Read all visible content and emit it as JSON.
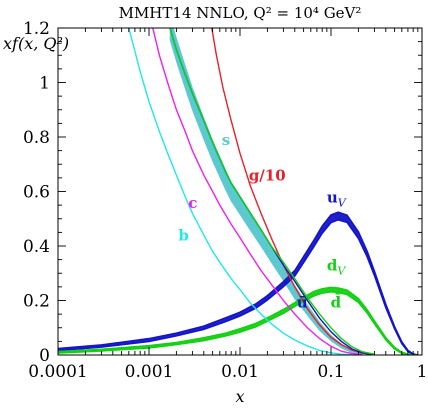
{
  "chart_data": {
    "type": "line",
    "title": "MMHT14 NNLO, Q² = 10⁴ GeV²",
    "xlabel": "x",
    "ylabel": "xf(x, Q²)",
    "xscale": "log",
    "xlim": [
      0.0001,
      1
    ],
    "ylim": [
      0,
      1.2
    ],
    "x_ticks": [
      0.0001,
      0.001,
      0.01,
      0.1,
      1
    ],
    "x_tick_labels": [
      "0.0001",
      "0.001",
      "0.01",
      "0.1",
      "1"
    ],
    "y_ticks": [
      0,
      0.2,
      0.4,
      0.6,
      0.8,
      1,
      1.2
    ],
    "y_tick_labels": [
      "0",
      "0.2",
      "0.4",
      "0.6",
      "0.8",
      "1",
      "1.2"
    ],
    "series": [
      {
        "name": "g/10",
        "color": "#e8202a",
        "band": false,
        "x": [
          0.0049,
          0.0055,
          0.0065,
          0.008,
          0.01,
          0.013,
          0.017,
          0.022,
          0.03,
          0.04,
          0.055,
          0.075,
          0.1,
          0.13,
          0.17,
          0.22,
          0.3
        ],
        "y": [
          1.2,
          1.1,
          0.98,
          0.86,
          0.74,
          0.62,
          0.52,
          0.43,
          0.33,
          0.25,
          0.17,
          0.11,
          0.065,
          0.038,
          0.018,
          0.007,
          0.001
        ]
      },
      {
        "name": "s",
        "color": "#5cc8cf",
        "band": true,
        "x": [
          0.0017,
          0.002,
          0.0025,
          0.003,
          0.004,
          0.005,
          0.006,
          0.007,
          0.008,
          0.01,
          0.013,
          0.017,
          0.022,
          0.03,
          0.04,
          0.055,
          0.075,
          0.1,
          0.13,
          0.17,
          0.22
        ],
        "y": [
          1.2,
          1.12,
          1.02,
          0.94,
          0.83,
          0.75,
          0.69,
          0.64,
          0.6,
          0.55,
          0.49,
          0.43,
          0.37,
          0.3,
          0.23,
          0.165,
          0.105,
          0.062,
          0.033,
          0.013,
          0.004
        ],
        "halfwidth": [
          0.045,
          0.044,
          0.043,
          0.042,
          0.04,
          0.039,
          0.038,
          0.037,
          0.036,
          0.035,
          0.034,
          0.032,
          0.03,
          0.028,
          0.025,
          0.02,
          0.016,
          0.011,
          0.008,
          0.005,
          0.002
        ]
      },
      {
        "name": "ū",
        "color": "#1414c8",
        "band": false,
        "x": [
          0.0017,
          0.002,
          0.0025,
          0.003,
          0.004,
          0.005,
          0.006,
          0.007,
          0.008,
          0.01,
          0.013,
          0.017,
          0.022,
          0.03,
          0.04,
          0.055,
          0.075,
          0.1,
          0.13,
          0.17,
          0.22,
          0.3
        ],
        "y": [
          1.2,
          1.12,
          1.03,
          0.96,
          0.86,
          0.78,
          0.72,
          0.67,
          0.63,
          0.58,
          0.52,
          0.46,
          0.4,
          0.33,
          0.27,
          0.2,
          0.135,
          0.085,
          0.05,
          0.022,
          0.008,
          0.002
        ]
      },
      {
        "name": "d̄",
        "color": "#12d012",
        "band": false,
        "x": [
          0.0017,
          0.002,
          0.0025,
          0.003,
          0.004,
          0.005,
          0.006,
          0.007,
          0.008,
          0.01,
          0.013,
          0.017,
          0.022,
          0.03,
          0.04,
          0.055,
          0.075,
          0.1,
          0.13,
          0.17,
          0.22,
          0.3
        ],
        "y": [
          1.2,
          1.12,
          1.03,
          0.96,
          0.86,
          0.78,
          0.72,
          0.67,
          0.63,
          0.58,
          0.52,
          0.46,
          0.4,
          0.34,
          0.28,
          0.21,
          0.15,
          0.1,
          0.06,
          0.03,
          0.012,
          0.003
        ]
      },
      {
        "name": "c",
        "color": "#ee20ee",
        "band": false,
        "x": [
          0.0011,
          0.0013,
          0.0016,
          0.002,
          0.0025,
          0.003,
          0.004,
          0.005,
          0.006,
          0.008,
          0.01,
          0.013,
          0.017,
          0.022,
          0.03,
          0.04,
          0.055,
          0.075,
          0.1,
          0.13,
          0.17,
          0.22
        ],
        "y": [
          1.2,
          1.1,
          1.0,
          0.9,
          0.82,
          0.75,
          0.66,
          0.6,
          0.55,
          0.48,
          0.43,
          0.37,
          0.31,
          0.26,
          0.2,
          0.15,
          0.1,
          0.06,
          0.032,
          0.014,
          0.005,
          0.001
        ]
      },
      {
        "name": "b",
        "color": "#20e8e8",
        "band": false,
        "x": [
          0.0006,
          0.0008,
          0.001,
          0.0013,
          0.0016,
          0.002,
          0.0025,
          0.003,
          0.004,
          0.005,
          0.006,
          0.008,
          0.01,
          0.013,
          0.017,
          0.022,
          0.03,
          0.04,
          0.055,
          0.075,
          0.1,
          0.13,
          0.17
        ],
        "y": [
          1.2,
          1.04,
          0.93,
          0.82,
          0.74,
          0.66,
          0.58,
          0.52,
          0.44,
          0.38,
          0.34,
          0.28,
          0.24,
          0.19,
          0.15,
          0.115,
          0.08,
          0.055,
          0.033,
          0.017,
          0.008,
          0.003,
          0.001
        ]
      },
      {
        "name": "u_V",
        "color": "#1414c8",
        "band": true,
        "x": [
          0.0001,
          0.0003,
          0.001,
          0.002,
          0.004,
          0.007,
          0.01,
          0.015,
          0.02,
          0.03,
          0.04,
          0.05,
          0.065,
          0.08,
          0.1,
          0.12,
          0.15,
          0.2,
          0.25,
          0.3,
          0.4,
          0.5,
          0.6,
          0.7,
          0.8,
          0.9
        ],
        "y": [
          0.02,
          0.033,
          0.055,
          0.075,
          0.1,
          0.13,
          0.15,
          0.18,
          0.21,
          0.26,
          0.3,
          0.35,
          0.41,
          0.46,
          0.5,
          0.51,
          0.5,
          0.44,
          0.37,
          0.3,
          0.18,
          0.1,
          0.045,
          0.015,
          0.003,
          0.0
        ],
        "halfwidth": [
          0.004,
          0.004,
          0.005,
          0.005,
          0.006,
          0.007,
          0.007,
          0.008,
          0.008,
          0.009,
          0.01,
          0.011,
          0.012,
          0.013,
          0.014,
          0.014,
          0.013,
          0.012,
          0.01,
          0.008,
          0.006,
          0.004,
          0.003,
          0.002,
          0.001,
          0.0
        ]
      },
      {
        "name": "d_V",
        "color": "#12d012",
        "band": true,
        "x": [
          0.0001,
          0.0003,
          0.001,
          0.002,
          0.004,
          0.007,
          0.01,
          0.015,
          0.02,
          0.03,
          0.04,
          0.05,
          0.065,
          0.08,
          0.1,
          0.12,
          0.15,
          0.2,
          0.25,
          0.3,
          0.4,
          0.5,
          0.6,
          0.7,
          0.8,
          0.9
        ],
        "y": [
          0.01,
          0.018,
          0.03,
          0.042,
          0.058,
          0.075,
          0.09,
          0.11,
          0.13,
          0.16,
          0.185,
          0.205,
          0.225,
          0.235,
          0.24,
          0.238,
          0.23,
          0.2,
          0.16,
          0.12,
          0.06,
          0.025,
          0.008,
          0.002,
          0.0,
          0.0
        ],
        "halfwidth": [
          0.003,
          0.003,
          0.004,
          0.004,
          0.005,
          0.005,
          0.006,
          0.006,
          0.006,
          0.007,
          0.007,
          0.007,
          0.008,
          0.008,
          0.008,
          0.008,
          0.008,
          0.007,
          0.006,
          0.005,
          0.004,
          0.003,
          0.002,
          0.001,
          0.0,
          0.0
        ]
      }
    ],
    "labels": [
      {
        "key": "g",
        "text": "g/10",
        "color": "#e8202a",
        "x": 0.0125,
        "y": 0.64
      },
      {
        "key": "s",
        "text": "s",
        "color": "#5cc8cf",
        "x": 0.0063,
        "y": 0.77
      },
      {
        "key": "c",
        "text": "c",
        "color": "#ee20ee",
        "x": 0.0027,
        "y": 0.54
      },
      {
        "key": "b",
        "text": "b",
        "color": "#20e8e8",
        "x": 0.0021,
        "y": 0.42
      },
      {
        "key": "uv",
        "text": "u",
        "sub": "V",
        "color": "#1414c8",
        "x": 0.09,
        "y": 0.56
      },
      {
        "key": "dv",
        "text": "d",
        "sub": "V",
        "color": "#12d012",
        "x": 0.09,
        "y": 0.31
      },
      {
        "key": "ubar",
        "text": "ū",
        "color": "#1414c8",
        "x": 0.042,
        "y": 0.175
      },
      {
        "key": "dbar",
        "text": "d̄",
        "color": "#12d012",
        "x": 0.099,
        "y": 0.175
      }
    ]
  }
}
